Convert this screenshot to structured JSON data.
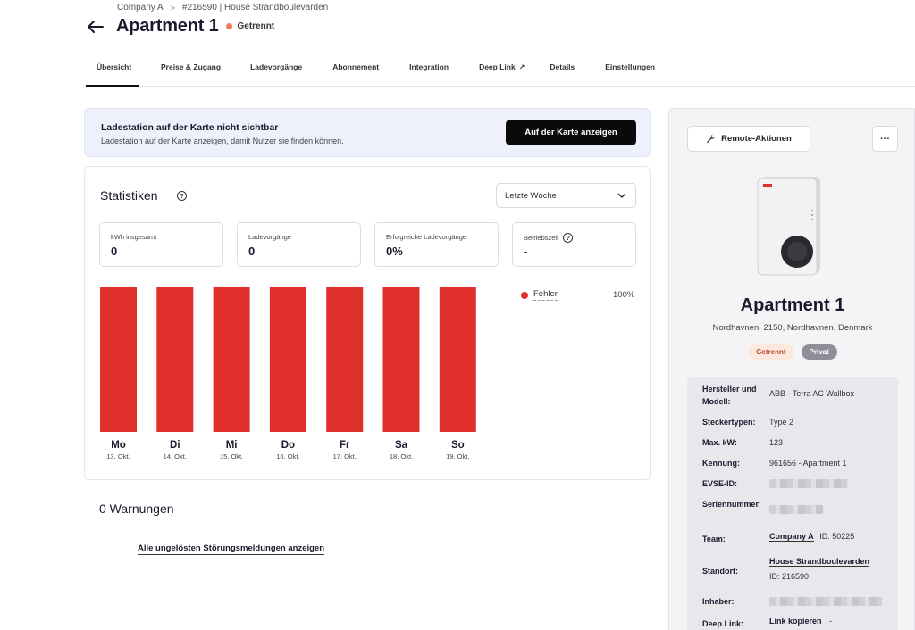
{
  "breadcrumb": {
    "company": "Company A",
    "separator": ">",
    "location": "#216590 | House Strandboulevarden"
  },
  "header": {
    "title": "Apartment 1",
    "status": "Getrennt",
    "status_color": "#f07a52"
  },
  "tabs": [
    {
      "label": "Übersicht",
      "active": true
    },
    {
      "label": "Preise & Zugang"
    },
    {
      "label": "Ladevorgänge"
    },
    {
      "label": "Abonnement"
    },
    {
      "label": "Integration"
    },
    {
      "label": "Deep Link",
      "external_icon": "↗"
    },
    {
      "label": "Details"
    },
    {
      "label": "Einstellungen"
    }
  ],
  "banner": {
    "title": "Ladestation auf der Karte nicht sichtbar",
    "description": "Ladestation auf der Karte anzeigen, damit Nutzer sie finden können.",
    "button": "Auf der Karte anzeigen"
  },
  "stats": {
    "title": "Statistiken",
    "period": "Letzte Woche",
    "metrics": [
      {
        "label": "kWh insgesamt",
        "value": "0"
      },
      {
        "label": "Ladevorgänge",
        "value": "0"
      },
      {
        "label": "Erfolgreiche Ladevorgänge",
        "value": "0%"
      },
      {
        "label": "Betriebszeit",
        "value": "-"
      }
    ],
    "legend": {
      "label": "Fehler",
      "percent": "100%",
      "color": "#e0302b"
    }
  },
  "chart_data": {
    "type": "bar",
    "categories": [
      "Mo",
      "Di",
      "Mi",
      "Do",
      "Fr",
      "Sa",
      "So"
    ],
    "dates": [
      "13. Okt.",
      "14. Okt.",
      "15. Okt.",
      "16. Okt.",
      "17. Okt.",
      "18. Okt.",
      "19. Okt."
    ],
    "series": [
      {
        "name": "Fehler",
        "values": [
          100,
          100,
          100,
          100,
          100,
          100,
          100
        ],
        "color": "#e0302b"
      }
    ],
    "ylim": [
      0,
      100
    ],
    "grid": false,
    "legend": "right"
  },
  "warnings": {
    "title": "0 Warnungen",
    "link": "Alle ungelösten Störungsmeldungen anzeigen"
  },
  "side": {
    "remote_button": "Remote-Aktionen",
    "more_button": "···",
    "device_title": "Apartment 1",
    "address": "Nordhavnen, 2150, Nordhavnen, Denmark",
    "badge_status": "Getrennt",
    "badge_private": "Privat",
    "details": {
      "manufacturer_label": "Hersteller und Modell:",
      "manufacturer_value": "ABB - Terra AC Wallbox",
      "connector_label": "Steckertypen:",
      "connector_value": "Type 2",
      "maxkw_label": "Max. kW:",
      "maxkw_value": "123",
      "id_label": "Kennung:",
      "id_value": "961656 - Apartment 1",
      "evse_label": "EVSE-ID:",
      "serial_label": "Seriennummer:",
      "team_label": "Team:",
      "team_link": "Company A",
      "team_id": "ID: 50225",
      "site_label": "Standort:",
      "site_link": "House Strandboulevarden",
      "site_id": "ID: 216590",
      "owner_label": "Inhaber:",
      "deeplink_label": "Deep Link:",
      "deeplink_link": "Link kopieren",
      "deeplink_suffix": "-"
    }
  }
}
